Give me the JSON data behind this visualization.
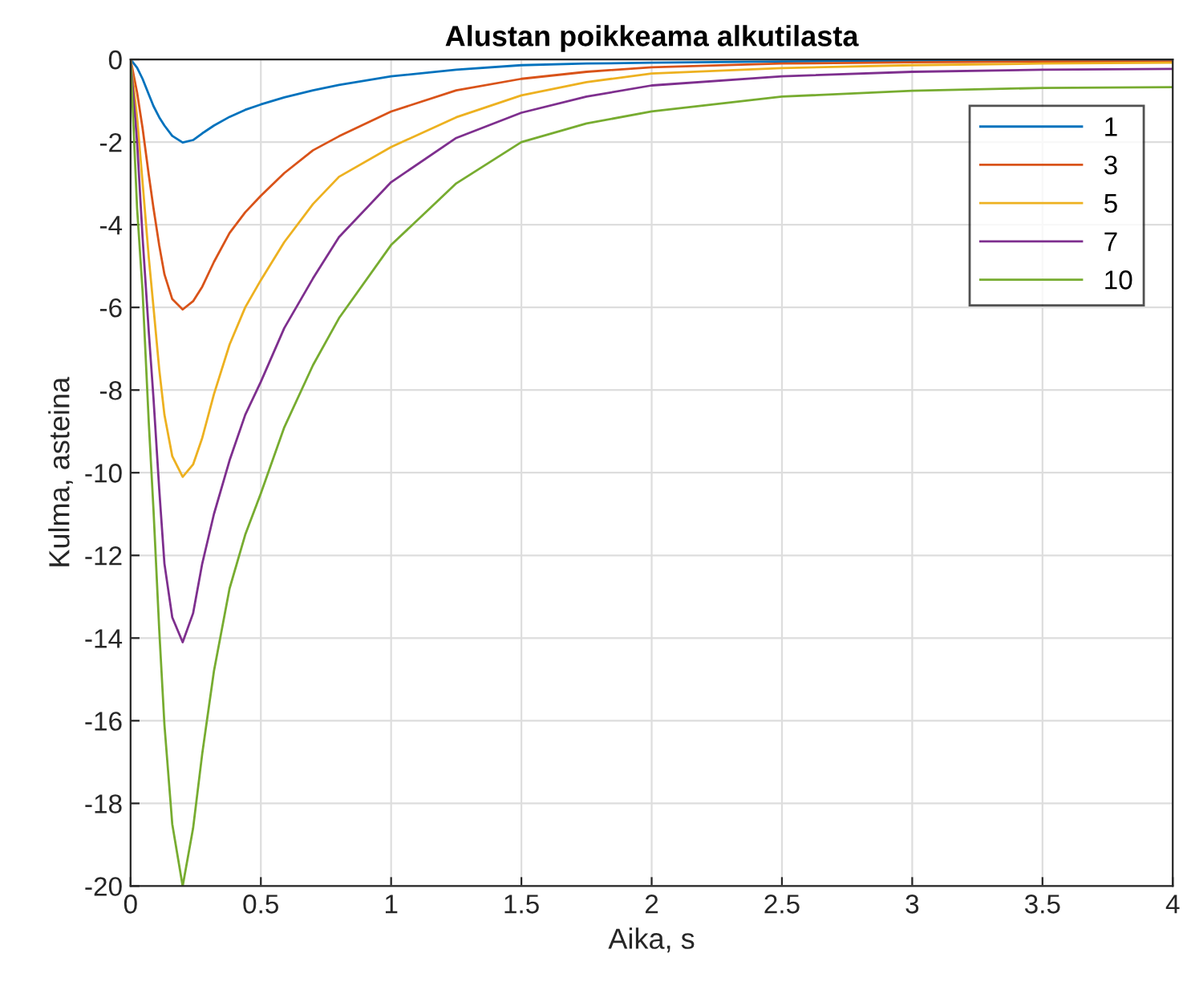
{
  "chart_data": {
    "type": "line",
    "title": "Alustan poikkeama alkutilasta",
    "xlabel": "Aika, s",
    "ylabel": "Kulma, asteina",
    "x": [
      0,
      0.025,
      0.046,
      0.07,
      0.088,
      0.11,
      0.13,
      0.16,
      0.2,
      0.24,
      0.275,
      0.32,
      0.38,
      0.44,
      0.5,
      0.59,
      0.7,
      0.8,
      1.0,
      1.25,
      1.5,
      1.75,
      2,
      2.5,
      3,
      3.5,
      4
    ],
    "series": [
      {
        "name": "1",
        "color": "#0072bd",
        "values": [
          0,
          -0.2,
          -0.47,
          -0.85,
          -1.13,
          -1.4,
          -1.6,
          -1.85,
          -2.01,
          -1.95,
          -1.79,
          -1.6,
          -1.39,
          -1.22,
          -1.09,
          -0.92,
          -0.75,
          -0.62,
          -0.41,
          -0.25,
          -0.14,
          -0.1,
          -0.08,
          -0.05,
          -0.03,
          -0.02,
          -0.02
        ]
      },
      {
        "name": "3",
        "color": "#d95319",
        "values": [
          0,
          -0.8,
          -1.66,
          -2.8,
          -3.6,
          -4.5,
          -5.2,
          -5.8,
          -6.05,
          -5.85,
          -5.5,
          -4.9,
          -4.2,
          -3.7,
          -3.3,
          -2.75,
          -2.2,
          -1.86,
          -1.26,
          -0.75,
          -0.47,
          -0.3,
          -0.19,
          -0.1,
          -0.07,
          -0.05,
          -0.05
        ]
      },
      {
        "name": "5",
        "color": "#edb120",
        "values": [
          0,
          -1.4,
          -2.97,
          -4.8,
          -6.0,
          -7.5,
          -8.6,
          -9.6,
          -10.1,
          -9.8,
          -9.16,
          -8.1,
          -6.9,
          -6.0,
          -5.34,
          -4.42,
          -3.5,
          -2.84,
          -2.12,
          -1.4,
          -0.87,
          -0.55,
          -0.34,
          -0.21,
          -0.14,
          -0.1,
          -0.08
        ]
      },
      {
        "name": "7",
        "color": "#7e2f8e",
        "values": [
          0,
          -2.0,
          -4.3,
          -6.6,
          -8.2,
          -10.4,
          -12.2,
          -13.5,
          -14.1,
          -13.4,
          -12.2,
          -11.0,
          -9.7,
          -8.6,
          -7.8,
          -6.5,
          -5.3,
          -4.3,
          -2.97,
          -1.9,
          -1.29,
          -0.9,
          -0.63,
          -0.41,
          -0.3,
          -0.25,
          -0.23
        ]
      },
      {
        "name": "10",
        "color": "#77ac30",
        "values": [
          0,
          -3.6,
          -5.6,
          -8.8,
          -10.9,
          -13.8,
          -16.1,
          -18.5,
          -20,
          -18.6,
          -16.8,
          -14.8,
          -12.8,
          -11.5,
          -10.5,
          -8.9,
          -7.4,
          -6.26,
          -4.49,
          -3.0,
          -2.0,
          -1.55,
          -1.26,
          -0.9,
          -0.76,
          -0.69,
          -0.67
        ]
      }
    ],
    "xlim": [
      0,
      4
    ],
    "xticks": [
      0,
      0.5,
      1,
      1.5,
      2,
      2.5,
      3,
      3.5,
      4
    ],
    "ylim": [
      -20,
      0
    ],
    "yticks": [
      -20,
      -18,
      -16,
      -14,
      -12,
      -10,
      -8,
      -6,
      -4,
      -2,
      0
    ],
    "grid": true,
    "legend": "top right",
    "marker": "none",
    "line_style": "solid"
  }
}
